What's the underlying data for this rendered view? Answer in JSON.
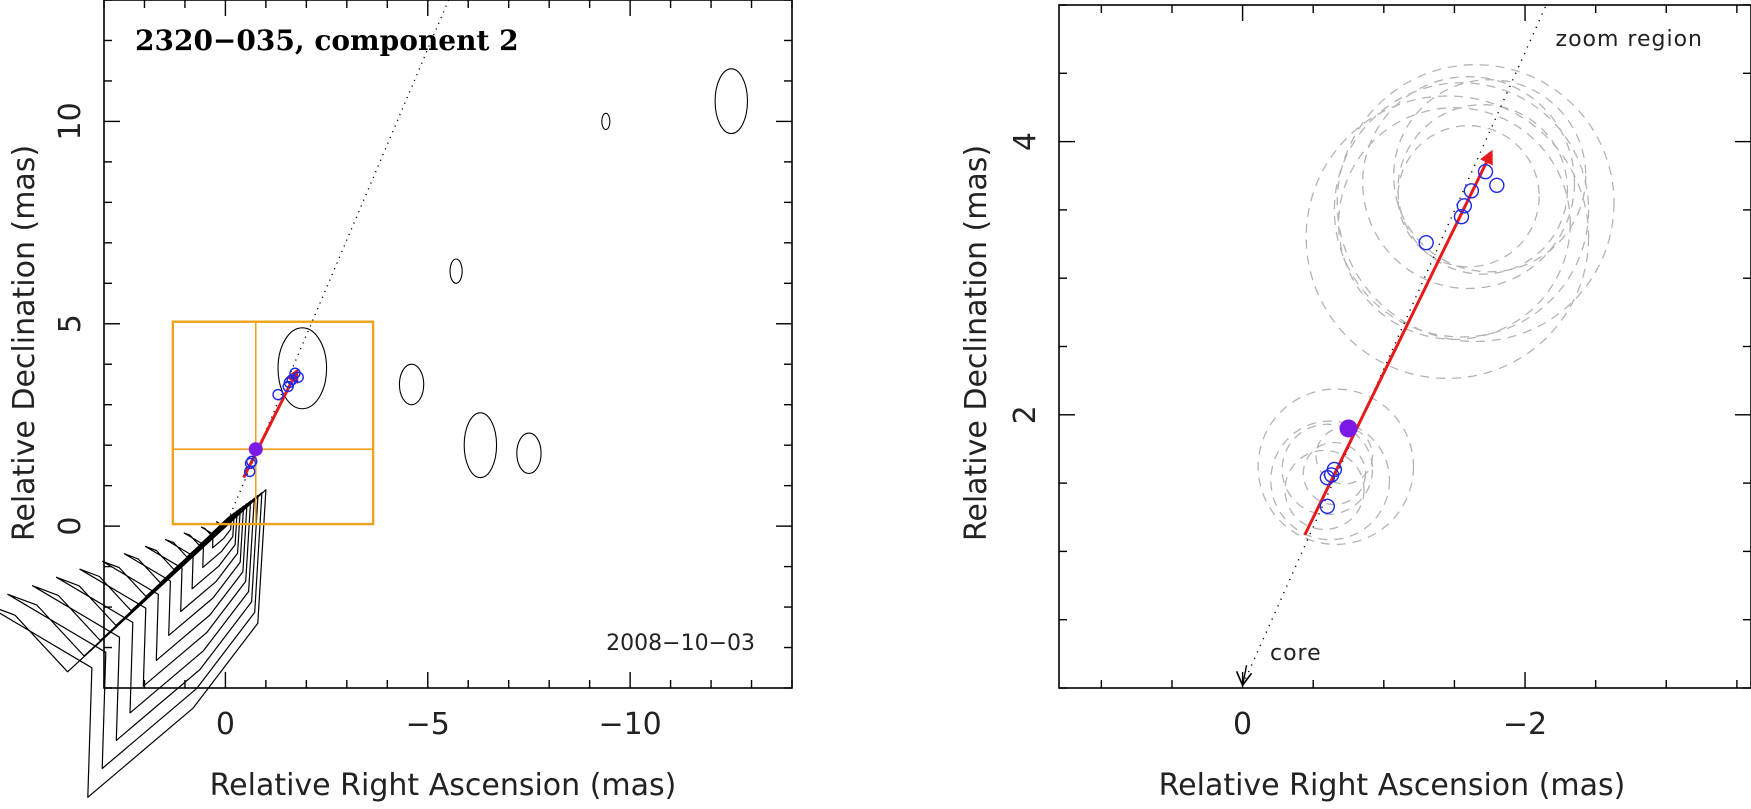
{
  "chart_data": [
    {
      "type": "contour",
      "title": "2320−035, component 2",
      "date": "2008−10−03",
      "xlabel": "Relative Right Ascension (mas)",
      "ylabel": "Relative Declination (mas)",
      "xlim": [
        3,
        -14
      ],
      "ylim": [
        -4,
        13
      ],
      "xticks": [
        0,
        -5,
        -10
      ],
      "xtick_labels": [
        "0",
        "−5",
        "−10"
      ],
      "yticks": [
        0,
        5,
        10
      ],
      "ytick_labels": [
        "0",
        "5",
        "10"
      ],
      "contour_color": "#000000",
      "arrow": {
        "from": [
          -0.45,
          1.2
        ],
        "to": [
          -1.8,
          3.9
        ],
        "color": "#e8191a"
      },
      "trajectory_line": {
        "from": [
          0,
          0
        ],
        "to": [
          -5.6,
          13.2
        ],
        "style": "dotted"
      },
      "boxes": [
        {
          "x": [
            1.3,
            -3.65
          ],
          "y": [
            0.05,
            5.05
          ],
          "color": "#f0a41e"
        }
      ],
      "box_divider_x": -0.75,
      "box_divider_y": 1.9,
      "positions_open": [
        [
          -0.6,
          1.35
        ],
        [
          -0.62,
          1.55
        ],
        [
          -0.65,
          1.6
        ],
        [
          -1.3,
          3.25
        ],
        [
          -1.55,
          3.45
        ],
        [
          -1.58,
          3.55
        ],
        [
          -1.65,
          3.62
        ],
        [
          -1.72,
          3.78
        ],
        [
          -1.8,
          3.68
        ]
      ],
      "positions_filled": [
        [
          -0.75,
          1.9
        ]
      ],
      "marker_color": "#1e28e6",
      "filled_color": "#7b19e6"
    },
    {
      "type": "scatter",
      "annotation": "zoom region",
      "core_label": "core",
      "xlabel": "Relative Right Ascension (mas)",
      "ylabel": "Relative Declination (mas)",
      "xlim": [
        1.3,
        -3.6
      ],
      "ylim": [
        0,
        5.0
      ],
      "xticks": [
        0,
        -2
      ],
      "xtick_labels": [
        "0",
        "−2"
      ],
      "yticks": [
        2,
        4
      ],
      "ytick_labels": [
        "2",
        "4"
      ],
      "arrow": {
        "from": [
          -0.44,
          1.12
        ],
        "to": [
          -1.77,
          3.94
        ],
        "color": "#e8191a"
      },
      "trajectory_line": {
        "from": [
          0,
          0.02
        ],
        "to": [
          -2.15,
          5.0
        ],
        "style": "dotted"
      },
      "core_arrow": {
        "from": [
          -0.1,
          0.32
        ],
        "to": [
          0,
          0.02
        ]
      },
      "positions_open": [
        [
          -0.6,
          1.33
        ],
        [
          -0.6,
          1.54
        ],
        [
          -0.63,
          1.56
        ],
        [
          -0.65,
          1.6
        ],
        [
          -1.3,
          3.26
        ],
        [
          -1.55,
          3.45
        ],
        [
          -1.57,
          3.53
        ],
        [
          -1.62,
          3.64
        ],
        [
          -1.72,
          3.78
        ],
        [
          -1.8,
          3.68
        ]
      ],
      "positions_filled": [
        [
          -0.75,
          1.9
        ]
      ],
      "error_circles": [
        {
          "c": [
            -0.6,
            1.6
          ],
          "r": 0.32
        },
        {
          "c": [
            -0.62,
            1.52
          ],
          "r": 0.42
        },
        {
          "c": [
            -0.65,
            1.57
          ],
          "r": 0.22
        },
        {
          "c": [
            -0.66,
            1.62
          ],
          "r": 0.55
        },
        {
          "c": [
            -0.58,
            1.45
          ],
          "r": 0.28
        },
        {
          "c": [
            -0.72,
            1.7
          ],
          "r": 0.2
        },
        {
          "c": [
            -1.55,
            3.5
          ],
          "r": 0.9
        },
        {
          "c": [
            -1.6,
            3.7
          ],
          "r": 0.75
        },
        {
          "c": [
            -1.65,
            3.55
          ],
          "r": 0.98
        },
        {
          "c": [
            -1.7,
            3.65
          ],
          "r": 0.6
        },
        {
          "c": [
            -1.5,
            3.4
          ],
          "r": 0.82
        },
        {
          "c": [
            -1.75,
            3.75
          ],
          "r": 0.68
        },
        {
          "c": [
            -1.45,
            3.3
          ],
          "r": 1.0
        },
        {
          "c": [
            -1.6,
            3.6
          ],
          "r": 0.5
        }
      ],
      "marker_color": "#1e28e6",
      "filled_color": "#7b19e6",
      "circle_color": "#b4b4b4"
    }
  ]
}
